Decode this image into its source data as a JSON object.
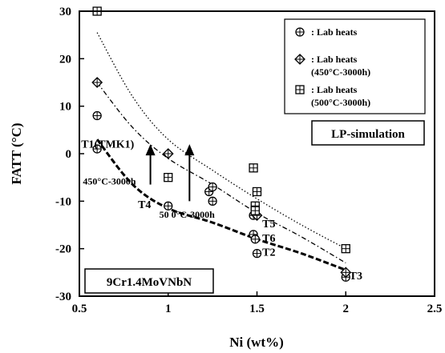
{
  "chart_data": {
    "type": "scatter",
    "xlabel": "Ni (wt%)",
    "ylabel": "FATT  (°C)",
    "xlim": [
      0.5,
      2.5
    ],
    "ylim": [
      -30,
      30
    ],
    "xticks": [
      "0.5",
      "1",
      "1.5",
      "2",
      "2.5"
    ],
    "yticks": [
      "-30",
      "-20",
      "-10",
      "0",
      "10",
      "20",
      "30"
    ],
    "grid": false,
    "legend_position": "top-right",
    "series": [
      {
        "name": ": Lab heats",
        "marker": "circle-plus",
        "points": [
          {
            "x": 0.6,
            "y": 8
          },
          {
            "x": 0.6,
            "y": 1
          },
          {
            "x": 1.0,
            "y": -11
          },
          {
            "x": 1.23,
            "y": -8
          },
          {
            "x": 1.25,
            "y": -7
          },
          {
            "x": 1.25,
            "y": -10
          },
          {
            "x": 1.48,
            "y": -13
          },
          {
            "x": 1.48,
            "y": -17
          },
          {
            "x": 1.49,
            "y": -18
          },
          {
            "x": 1.5,
            "y": -21
          },
          {
            "x": 2.0,
            "y": -26
          }
        ]
      },
      {
        "name": ": Lab heats\n(450°C-3000h)",
        "marker": "diamond-plus",
        "points": [
          {
            "x": 0.6,
            "y": 15
          },
          {
            "x": 1.0,
            "y": 0
          },
          {
            "x": 1.5,
            "y": -13
          },
          {
            "x": 2.0,
            "y": -25
          }
        ]
      },
      {
        "name": ": Lab heats\n(500°C-3000h)",
        "marker": "square-plus",
        "points": [
          {
            "x": 0.6,
            "y": 30
          },
          {
            "x": 1.0,
            "y": -5
          },
          {
            "x": 1.48,
            "y": -3
          },
          {
            "x": 1.5,
            "y": -8
          },
          {
            "x": 1.49,
            "y": -11
          },
          {
            "x": 1.49,
            "y": -12
          },
          {
            "x": 2.0,
            "y": -20
          }
        ]
      }
    ],
    "curves": [
      {
        "style": "dashed-thick",
        "points": [
          [
            0.6,
            3
          ],
          [
            0.8,
            -6.5
          ],
          [
            1.0,
            -11.5
          ],
          [
            1.25,
            -14.5
          ],
          [
            1.5,
            -18
          ],
          [
            1.75,
            -21
          ],
          [
            2.0,
            -24.5
          ]
        ]
      },
      {
        "style": "dash-dot",
        "points": [
          [
            0.6,
            15
          ],
          [
            0.8,
            5.5
          ],
          [
            1.0,
            -1
          ],
          [
            1.25,
            -6.5
          ],
          [
            1.5,
            -12.5
          ],
          [
            1.75,
            -17.5
          ],
          [
            2.0,
            -23
          ]
        ]
      },
      {
        "style": "dotted",
        "points": [
          [
            0.6,
            25.5
          ],
          [
            0.8,
            12
          ],
          [
            1.0,
            3
          ],
          [
            1.25,
            -3.5
          ],
          [
            1.5,
            -9.5
          ],
          [
            1.75,
            -15
          ],
          [
            2.0,
            -20
          ]
        ]
      }
    ],
    "arrows": [
      {
        "x": 0.9,
        "y_from": -6.5,
        "y_to": 2
      },
      {
        "x": 1.12,
        "y_from": -10,
        "y_to": 2
      }
    ],
    "annotations": [
      {
        "text": "T1(TMK1)",
        "x": 0.51,
        "y": 1.3,
        "cls": "annot"
      },
      {
        "text": "450°C-3000h",
        "x": 0.52,
        "y": -6.5,
        "cls": "annot-small"
      },
      {
        "text": "T4",
        "x": 0.83,
        "y": -11.5,
        "cls": "annot"
      },
      {
        "text": "50 0°C-3000h",
        "x": 0.95,
        "y": -13.5,
        "cls": "annot-small"
      },
      {
        "text": "T5",
        "x": 1.53,
        "y": -15.5,
        "cls": "annot"
      },
      {
        "text": "T6",
        "x": 1.53,
        "y": -18.5,
        "cls": "annot"
      },
      {
        "text": "T2",
        "x": 1.53,
        "y": -21.5,
        "cls": "annot"
      },
      {
        "text": "T3",
        "x": 2.02,
        "y": -26.5,
        "cls": "annot"
      }
    ],
    "boxes": [
      {
        "text": "LP-simulation"
      },
      {
        "text": "9Cr1.4MoVNbN"
      }
    ]
  }
}
